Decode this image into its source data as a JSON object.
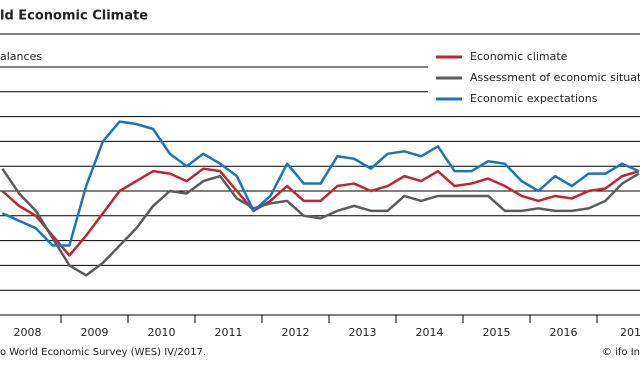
{
  "chart_data": {
    "type": "line",
    "title": "ld Economic Climate",
    "y_label": "alances",
    "source": "o World Economic Survey (WES) IV/2017.",
    "credit": "© ifo In",
    "categories": [
      "2008",
      null,
      null,
      null,
      "2009",
      null,
      null,
      null,
      "2010",
      null,
      null,
      null,
      "2011",
      null,
      null,
      null,
      "2012",
      null,
      null,
      null,
      "2013",
      null,
      null,
      null,
      "2014",
      null,
      null,
      null,
      "2015",
      null,
      null,
      null,
      "2016",
      null,
      null,
      null,
      "201",
      null,
      null
    ],
    "series": [
      {
        "name": "Economic climate",
        "color": "#c3242f",
        "values": [
          -10,
          -16,
          -20,
          -28,
          -36,
          -28,
          -19,
          -10,
          -6,
          -2,
          -3,
          -6,
          -1,
          -2,
          -10,
          -18,
          -14,
          -8,
          -14,
          -14,
          -8,
          -7,
          -10,
          -8,
          -4,
          -6,
          -2,
          -8,
          -7,
          -5,
          -8,
          -12,
          -14,
          -12,
          -13,
          -10,
          -9,
          -4,
          -2
        ]
      },
      {
        "name": "Assessment of economic situatio",
        "color": "#5b5b5b",
        "values": [
          -1,
          -11,
          -18,
          -29,
          -40,
          -44,
          -39,
          -32,
          -25,
          -16,
          -10,
          -11,
          -6,
          -4,
          -13,
          -17,
          -15,
          -14,
          -20,
          -21,
          -18,
          -16,
          -18,
          -18,
          -12,
          -14,
          -12,
          -12,
          -12,
          -12,
          -18,
          -18,
          -17,
          -18,
          -18,
          -17,
          -14,
          -7,
          -3
        ]
      },
      {
        "name": "Economic expectations",
        "color": "#1c75b9",
        "values": [
          -19,
          -22,
          -25,
          -32,
          -32,
          -8,
          10,
          18,
          17,
          15,
          5,
          0,
          5,
          1,
          -4,
          -18,
          -12,
          1,
          -7,
          -7,
          4,
          3,
          -1,
          5,
          6,
          4,
          8,
          -2,
          -2,
          2,
          1,
          -6,
          -10,
          -4,
          -8,
          -3,
          -3,
          1,
          -2
        ]
      }
    ],
    "ylim": [
      -60,
      40
    ],
    "yticks": [
      -60,
      -50,
      -40,
      -30,
      -20,
      -10,
      0,
      10,
      20,
      30,
      40
    ],
    "grid": true,
    "legend": "upper right"
  }
}
